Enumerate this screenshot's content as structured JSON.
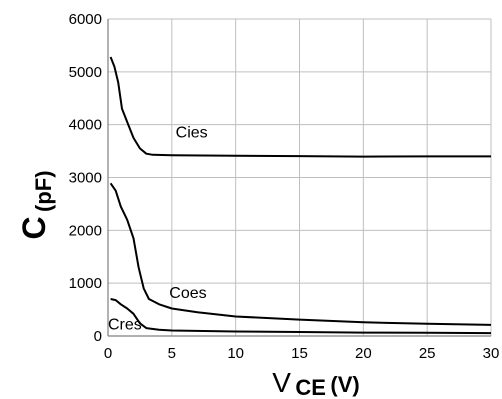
{
  "chart_data": {
    "type": "line",
    "title": "",
    "x_axis": {
      "label_main": "V",
      "label_sub": "CE",
      "label_tail": "(V)",
      "range": [
        0,
        30
      ],
      "ticks": [
        0,
        5,
        10,
        15,
        20,
        25,
        30
      ],
      "tick_labels": [
        "0",
        "5",
        "10",
        "15",
        "20",
        "25",
        "30"
      ]
    },
    "y_axis": {
      "label_main": "C",
      "label_sub": "(pF)",
      "range": [
        0,
        6000
      ],
      "ticks": [
        0,
        1000,
        2000,
        3000,
        4000,
        5000,
        6000
      ],
      "tick_labels": [
        "0",
        "1000",
        "2000",
        "3000",
        "4000",
        "5000",
        "6000"
      ]
    },
    "grid": true,
    "series": [
      {
        "name": "Cies",
        "points": [
          [
            0.2,
            5280
          ],
          [
            0.5,
            5100
          ],
          [
            0.8,
            4800
          ],
          [
            1.1,
            4300
          ],
          [
            1.5,
            4050
          ],
          [
            2.0,
            3750
          ],
          [
            2.5,
            3550
          ],
          [
            3.0,
            3450
          ],
          [
            3.5,
            3430
          ],
          [
            5,
            3420
          ],
          [
            10,
            3410
          ],
          [
            15,
            3405
          ],
          [
            20,
            3395
          ],
          [
            25,
            3400
          ],
          [
            30,
            3400
          ]
        ]
      },
      {
        "name": "Coes",
        "points": [
          [
            0.2,
            2890
          ],
          [
            0.6,
            2750
          ],
          [
            1.0,
            2450
          ],
          [
            1.5,
            2200
          ],
          [
            2.0,
            1850
          ],
          [
            2.4,
            1300
          ],
          [
            2.8,
            900
          ],
          [
            3.2,
            700
          ],
          [
            4,
            600
          ],
          [
            5,
            520
          ],
          [
            7,
            450
          ],
          [
            10,
            370
          ],
          [
            15,
            310
          ],
          [
            20,
            260
          ],
          [
            25,
            230
          ],
          [
            30,
            210
          ]
        ]
      },
      {
        "name": "Cres",
        "points": [
          [
            0.2,
            700
          ],
          [
            0.6,
            680
          ],
          [
            1.0,
            600
          ],
          [
            1.5,
            520
          ],
          [
            2.0,
            420
          ],
          [
            2.5,
            240
          ],
          [
            3.0,
            150
          ],
          [
            4,
            120
          ],
          [
            5,
            105
          ],
          [
            10,
            85
          ],
          [
            15,
            75
          ],
          [
            20,
            65
          ],
          [
            25,
            60
          ],
          [
            30,
            55
          ]
        ]
      }
    ],
    "annotations": [
      {
        "text": "Cies",
        "x": 5.3,
        "y": 3760
      },
      {
        "text": "Coes",
        "x": 4.8,
        "y": 720
      },
      {
        "text": "Cres",
        "x": 0.0,
        "y": 120
      }
    ]
  },
  "colors": {
    "line": "#000000",
    "grid": "#bfbfbf",
    "background": "#ffffff"
  }
}
